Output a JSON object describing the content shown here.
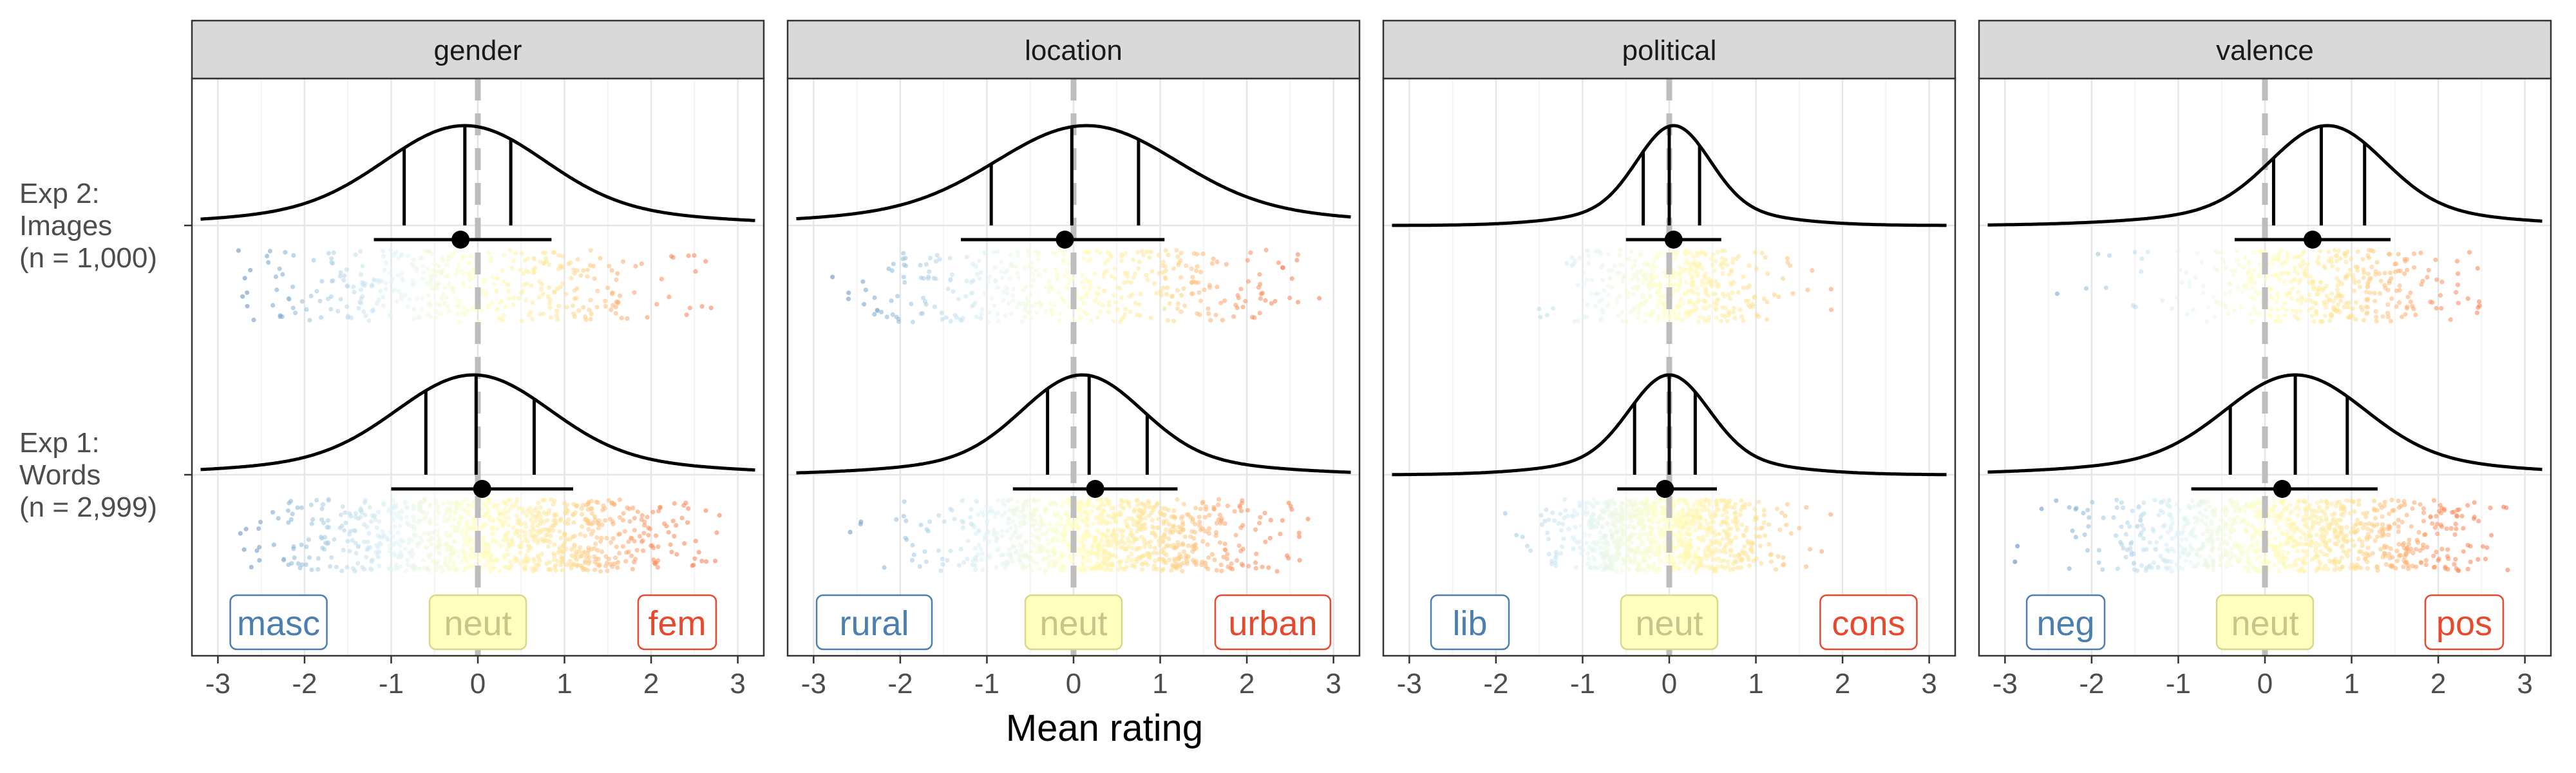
{
  "chart_data": {
    "type": "raincloud",
    "xlabel": "Mean rating",
    "xlim": [
      -3.3,
      3.3
    ],
    "xticks": [
      -3,
      -2,
      -1,
      0,
      1,
      2,
      3
    ],
    "ylabels": [
      {
        "id": "exp2",
        "lines": [
          "Exp 2:",
          "Images",
          "(n = 1,000)"
        ]
      },
      {
        "id": "exp1",
        "lines": [
          "Exp 1:",
          "Words",
          "(n = 2,999)"
        ]
      }
    ],
    "panels": [
      {
        "facet": "gender",
        "labels": {
          "low": "masc",
          "mid": "neut",
          "high": "fem"
        },
        "rows": [
          {
            "experiment": "Exp 2: Images",
            "n": 1000,
            "mean": -0.2,
            "ci": [
              -1.2,
              0.85
            ],
            "quantiles": [
              -0.85,
              -0.15,
              0.38
            ],
            "peak": -0.15,
            "sd": 1.2,
            "range": [
              -2.8,
              2.8
            ]
          },
          {
            "experiment": "Exp 1: Words",
            "n": 2999,
            "mean": 0.05,
            "ci": [
              -1.0,
              1.1
            ],
            "quantiles": [
              -0.6,
              -0.02,
              0.65
            ],
            "peak": -0.05,
            "sd": 1.15,
            "range": [
              -2.8,
              2.8
            ]
          }
        ]
      },
      {
        "facet": "location",
        "labels": {
          "low": "rural",
          "mid": "neut",
          "high": "urban"
        },
        "rows": [
          {
            "experiment": "Exp 2: Images",
            "n": 1000,
            "mean": -0.1,
            "ci": [
              -1.3,
              1.05
            ],
            "quantiles": [
              -0.95,
              -0.02,
              0.75
            ],
            "peak": 0.15,
            "sd": 1.35,
            "range": [
              -2.8,
              2.9
            ]
          },
          {
            "experiment": "Exp 1: Words",
            "n": 2999,
            "mean": 0.25,
            "ci": [
              -0.7,
              1.2
            ],
            "quantiles": [
              -0.3,
              0.18,
              0.85
            ],
            "peak": 0.1,
            "sd": 0.9,
            "range": [
              -2.8,
              2.8
            ]
          }
        ]
      },
      {
        "facet": "political",
        "labels": {
          "low": "lib",
          "mid": "neut",
          "high": "cons"
        },
        "rows": [
          {
            "experiment": "Exp 2: Images",
            "n": 1000,
            "mean": 0.05,
            "ci": [
              -0.5,
              0.6
            ],
            "quantiles": [
              -0.3,
              0.0,
              0.35
            ],
            "peak": 0.05,
            "sd": 0.55,
            "range": [
              -1.8,
              1.9
            ]
          },
          {
            "experiment": "Exp 1: Words",
            "n": 2999,
            "mean": -0.05,
            "ci": [
              -0.6,
              0.55
            ],
            "quantiles": [
              -0.4,
              0.0,
              0.3
            ],
            "peak": 0.0,
            "sd": 0.6,
            "range": [
              -2.3,
              2.0
            ]
          }
        ]
      },
      {
        "facet": "valence",
        "labels": {
          "low": "neg",
          "mid": "neut",
          "high": "pos"
        },
        "rows": [
          {
            "experiment": "Exp 2: Images",
            "n": 1000,
            "mean": 0.55,
            "ci": [
              -0.35,
              1.45
            ],
            "quantiles": [
              0.1,
              0.65,
              1.15
            ],
            "peak": 0.72,
            "sd": 0.85,
            "range": [
              -2.4,
              2.5
            ]
          },
          {
            "experiment": "Exp 1: Words",
            "n": 2999,
            "mean": 0.2,
            "ci": [
              -0.85,
              1.3
            ],
            "quantiles": [
              -0.4,
              0.35,
              0.95
            ],
            "peak": 0.35,
            "sd": 1.05,
            "range": [
              -2.9,
              2.9
            ]
          }
        ]
      }
    ],
    "colors": {
      "low": "#4a7fb0",
      "mid": "#e3e090",
      "high": "#e8482c",
      "mid_label_border": "#d8d88a",
      "mid_label_fill": "#ffffbf",
      "strip_fill": "#d9d9d9",
      "reference_line": "#bdbdbd",
      "point_palette": [
        "#4575b4",
        "#91bfdb",
        "#e0f3f8",
        "#ffffbf",
        "#fee090",
        "#fc8d59",
        "#f46d43"
      ]
    },
    "grid": true,
    "legend": "none"
  }
}
